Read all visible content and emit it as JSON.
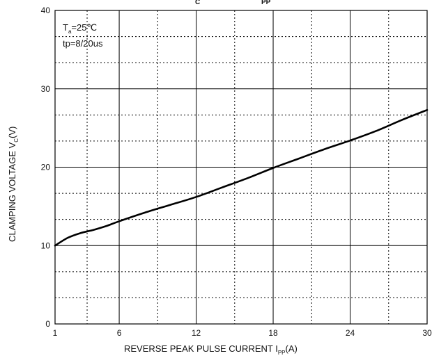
{
  "chart_data": {
    "type": "line",
    "title_fragments": [
      "C",
      "PP"
    ],
    "xlabel": {
      "main": "REVERSE PEAK PULSE CURRENT   I",
      "sub": "PP",
      "unit": "(A)"
    },
    "ylabel": {
      "main": "CLAMPING VOLTAGE  V",
      "sub": "C",
      "unit": "(V)"
    },
    "xlim": [
      1,
      30
    ],
    "ylim": [
      0,
      40
    ],
    "x_ticks": [
      "1",
      "6",
      "12",
      "18",
      "24",
      "30"
    ],
    "y_ticks": [
      "0",
      "10",
      "20",
      "30",
      "40"
    ],
    "grid": true,
    "annotations": {
      "ta_main": "T",
      "ta_sub": "a",
      "ta_rest": "=25℃",
      "tp": "tp=8/20us"
    },
    "series": [
      {
        "x": [
          1,
          2,
          3,
          4,
          5,
          6,
          8,
          10,
          12,
          14,
          16,
          18,
          20,
          22,
          24,
          26,
          28,
          30
        ],
        "y": [
          10.0,
          11.0,
          11.6,
          12.0,
          12.5,
          13.1,
          14.2,
          15.2,
          16.2,
          17.4,
          18.6,
          19.9,
          21.1,
          22.3,
          23.4,
          24.6,
          26.0,
          27.3
        ]
      }
    ]
  }
}
